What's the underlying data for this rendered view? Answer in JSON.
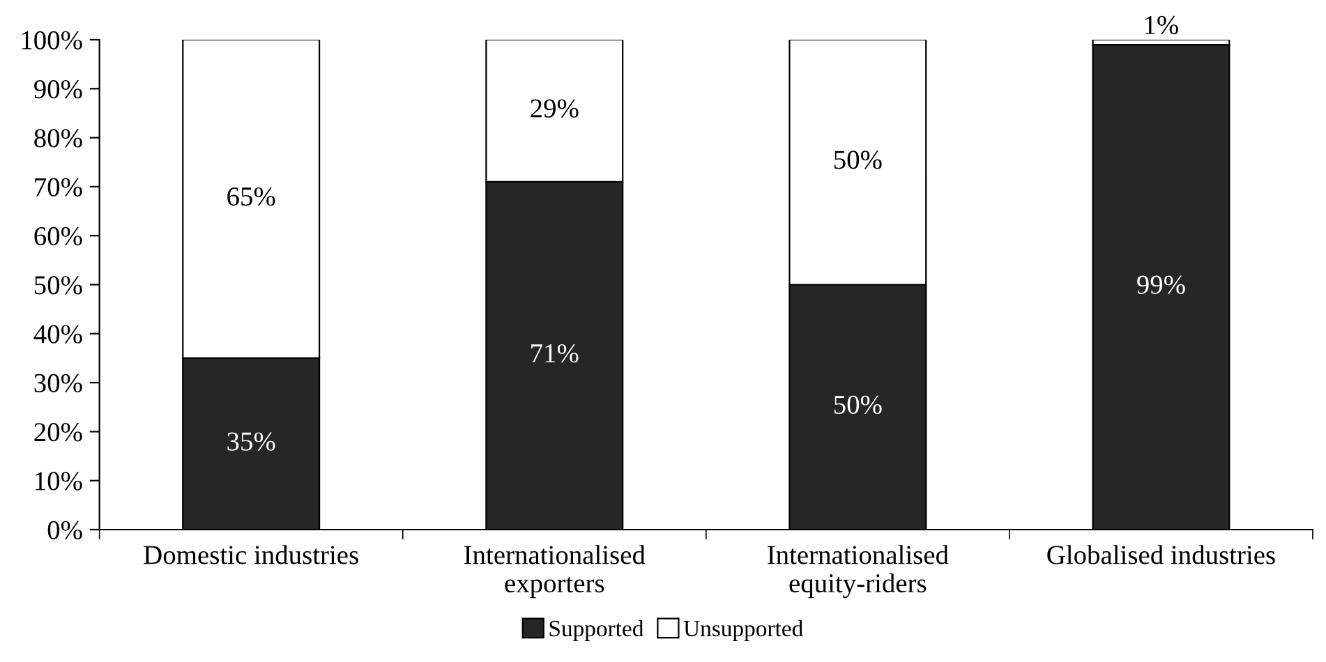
{
  "chart_data": {
    "type": "bar",
    "stacked": true,
    "categories": [
      "Domestic industries",
      "Internationalised\nexporters",
      "Internationalised\nequity-riders",
      "Globalised industries"
    ],
    "series": [
      {
        "name": "Supported",
        "color": "#262626",
        "values": [
          35,
          71,
          50,
          99
        ],
        "value_labels": [
          "35%",
          "71%",
          "50%",
          "99%"
        ]
      },
      {
        "name": "Unsupported",
        "color": "#ffffff",
        "values": [
          65,
          29,
          50,
          1
        ],
        "value_labels": [
          "65%",
          "29%",
          "50%",
          "1%"
        ]
      }
    ],
    "ylim": [
      0,
      100
    ],
    "yticks": [
      {
        "value": 0,
        "label": "0%"
      },
      {
        "value": 10,
        "label": "10%"
      },
      {
        "value": 20,
        "label": "20%"
      },
      {
        "value": 30,
        "label": "30%"
      },
      {
        "value": 40,
        "label": "40%"
      },
      {
        "value": 50,
        "label": "50%"
      },
      {
        "value": 60,
        "label": "60%"
      },
      {
        "value": 70,
        "label": "70%"
      },
      {
        "value": 80,
        "label": "80%"
      },
      {
        "value": 90,
        "label": "90%"
      },
      {
        "value": 100,
        "label": "100%"
      }
    ],
    "grid": false,
    "legend": "bottom"
  }
}
